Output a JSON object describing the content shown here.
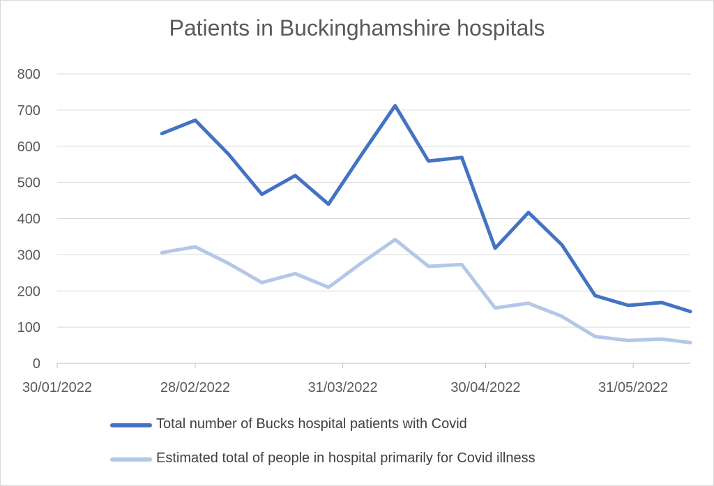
{
  "chart_data": {
    "type": "line",
    "title": "Patients in Buckinghamshire hospitals",
    "xlabel": "",
    "ylabel": "",
    "ylim": [
      0,
      800
    ],
    "yticks": [
      0,
      100,
      200,
      300,
      400,
      500,
      600,
      700,
      800
    ],
    "xlim": [
      "2022-01-30",
      "2022-06-12"
    ],
    "xtick_labels": [
      "30/01/2022",
      "28/02/2022",
      "31/03/2022",
      "30/04/2022",
      "31/05/2022"
    ],
    "xtick_dates": [
      "2022-01-30",
      "2022-02-28",
      "2022-03-31",
      "2022-04-30",
      "2022-05-31"
    ],
    "grid": true,
    "legend_position": "bottom",
    "x": [
      "2022-02-21",
      "2022-02-28",
      "2022-03-07",
      "2022-03-14",
      "2022-03-21",
      "2022-03-28",
      "2022-04-04",
      "2022-04-11",
      "2022-04-18",
      "2022-04-25",
      "2022-05-02",
      "2022-05-09",
      "2022-05-16",
      "2022-05-23",
      "2022-05-30",
      "2022-06-06",
      "2022-06-12"
    ],
    "series": [
      {
        "name": "Total number of Bucks hospital patients with Covid",
        "color": "#4472c4",
        "values": [
          635,
          672,
          578,
          467,
          519,
          440,
          578,
          712,
          559,
          569,
          318,
          417,
          328,
          187,
          160,
          168,
          143
        ]
      },
      {
        "name": "Estimated total of people in hospital primarily for Covid illness",
        "color": "#b4c7e7",
        "values": [
          306,
          322,
          276,
          223,
          248,
          210,
          278,
          342,
          268,
          273,
          153,
          166,
          130,
          74,
          63,
          67,
          57
        ]
      }
    ]
  }
}
